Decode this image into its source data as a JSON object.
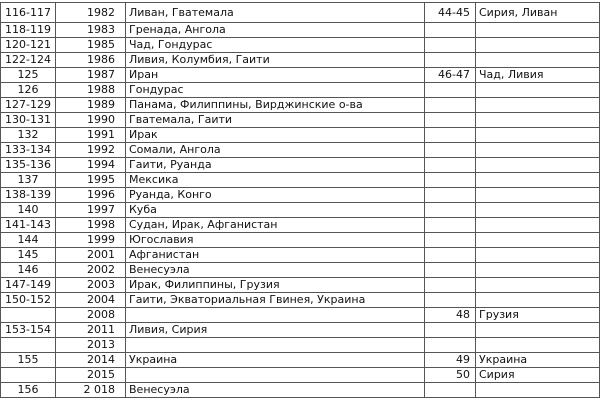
{
  "rows": [
    {
      "a": "116-117",
      "year": "1982",
      "countries": "Ливан, Гватемала",
      "b": "44-45",
      "countries2": "Сирия, Ливан"
    },
    {
      "a": "118-119",
      "year": "1983",
      "countries": "Гренада, Ангола",
      "b": "",
      "countries2": ""
    },
    {
      "a": "120-121",
      "year": "1985",
      "countries": "Чад, Гондурас",
      "b": "",
      "countries2": ""
    },
    {
      "a": "122-124",
      "year": "1986",
      "countries": "Ливия, Колумбия, Гаити",
      "b": "",
      "countries2": ""
    },
    {
      "a": "125",
      "year": "1987",
      "countries": "Иран",
      "b": "46-47",
      "countries2": "Чад, Ливия"
    },
    {
      "a": "126",
      "year": "1988",
      "countries": "Гондурас",
      "b": "",
      "countries2": ""
    },
    {
      "a": "127-129",
      "year": "1989",
      "countries": "Панама, Филиппины, Вирджинские о-ва",
      "b": "",
      "countries2": ""
    },
    {
      "a": "130-131",
      "year": "1990",
      "countries": "Гватемала, Гаити",
      "b": "",
      "countries2": ""
    },
    {
      "a": "132",
      "year": "1991",
      "countries": "Ирак",
      "b": "",
      "countries2": ""
    },
    {
      "a": "133-134",
      "year": "1992",
      "countries": "Сомали, Ангола",
      "b": "",
      "countries2": ""
    },
    {
      "a": "135-136",
      "year": "1994",
      "countries": "Гаити, Руанда",
      "b": "",
      "countries2": ""
    },
    {
      "a": "137",
      "year": "1995",
      "countries": "Мексика",
      "b": "",
      "countries2": ""
    },
    {
      "a": "138-139",
      "year": "1996",
      "countries": "Руанда, Конго",
      "b": "",
      "countries2": ""
    },
    {
      "a": "140",
      "year": "1997",
      "countries": "Куба",
      "b": "",
      "countries2": ""
    },
    {
      "a": "141-143",
      "year": "1998",
      "countries": "Судан, Ирак, Афганистан",
      "b": "",
      "countries2": ""
    },
    {
      "a": "144",
      "year": "1999",
      "countries": "Югославия",
      "b": "",
      "countries2": ""
    },
    {
      "a": "145",
      "year": "2001",
      "countries": "Афганистан",
      "b": "",
      "countries2": ""
    },
    {
      "a": "146",
      "year": "2002",
      "countries": "Венесуэла",
      "b": "",
      "countries2": ""
    },
    {
      "a": "147-149",
      "year": "2003",
      "countries": "Ирак, Филиппины, Грузия",
      "b": "",
      "countries2": ""
    },
    {
      "a": "150-152",
      "year": "2004",
      "countries": "Гаити, Экваториальная Гвинея, Украина",
      "b": "",
      "countries2": ""
    },
    {
      "a": "",
      "year": "2008",
      "countries": "",
      "b": "48",
      "countries2": "Грузия"
    },
    {
      "a": "153-154",
      "year": "2011",
      "countries": "Ливия, Сирия",
      "b": "",
      "countries2": ""
    },
    {
      "a": "",
      "year": "2013",
      "countries": "",
      "b": "",
      "countries2": ""
    },
    {
      "a": "155",
      "year": "2014",
      "countries": "Украина",
      "b": "49",
      "countries2": "Украина"
    },
    {
      "a": "",
      "year": "2015",
      "countries": "",
      "b": "50",
      "countries2": "Сирия"
    },
    {
      "a": "156",
      "year": "2 018",
      "countries": "Венесуэла",
      "b": "",
      "countries2": ""
    }
  ]
}
